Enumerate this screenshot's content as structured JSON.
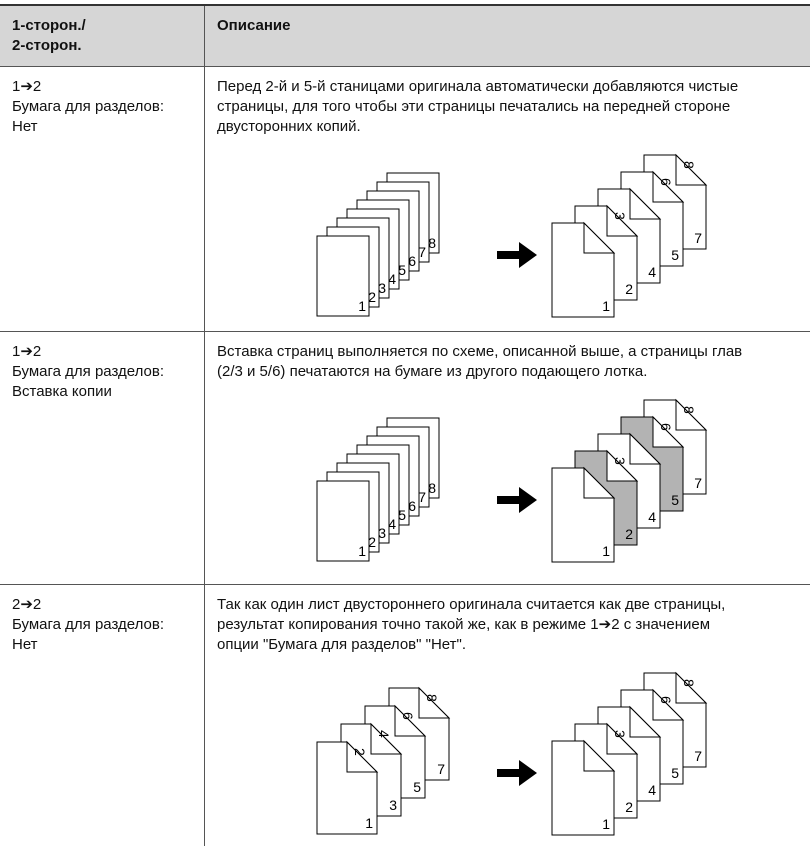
{
  "table": {
    "header": [
      [
        "1-сторон./",
        "2-сторон."
      ],
      "Описание"
    ],
    "rows": [
      {
        "mode": [
          "1➔2",
          "Бумага для разделов: Нет"
        ],
        "description": "Перед 2-й и 5-й станицами оригинала автоматически добавляются чистые страницы, для того чтобы эти страницы печатались на передней стороне двусторонних копий.",
        "diagram": {
          "source": {
            "sides": 1,
            "sheets": [
              [
                "1"
              ],
              [
                "2"
              ],
              [
                "3"
              ],
              [
                "4"
              ],
              [
                "5"
              ],
              [
                "6"
              ],
              [
                "7"
              ],
              [
                "8"
              ]
            ]
          },
          "output": {
            "sides": 2,
            "sheets": [
              [
                "1",
                null
              ],
              [
                "2",
                "3"
              ],
              [
                "4",
                null
              ],
              [
                "5",
                "6"
              ],
              [
                "7",
                "8"
              ]
            ],
            "shaded": [],
            "shade_color": "#b3b3b3"
          }
        }
      },
      {
        "mode": [
          "1➔2",
          "Бумага для разделов: Вставка копии"
        ],
        "description": "Вставка страниц выполняется по схеме, описанной выше, а страницы глав (2/3 и 5/6) печатаются на бумаге из другого подающего лотка.",
        "diagram": {
          "source": {
            "sides": 1,
            "sheets": [
              [
                "1"
              ],
              [
                "2"
              ],
              [
                "3"
              ],
              [
                "4"
              ],
              [
                "5"
              ],
              [
                "6"
              ],
              [
                "7"
              ],
              [
                "8"
              ]
            ]
          },
          "output": {
            "sides": 2,
            "sheets": [
              [
                "1",
                null
              ],
              [
                "2",
                "3"
              ],
              [
                "4",
                null
              ],
              [
                "5",
                "6"
              ],
              [
                "7",
                "8"
              ]
            ],
            "shaded": [
              1,
              3
            ],
            "shade_color": "#b3b3b3"
          }
        }
      },
      {
        "mode": [
          "2➔2",
          "Бумага для разделов: Нет"
        ],
        "description": "Так как один лист двустороннего оригинала считается как две страницы, результат копирования точно такой же, как в режиме 1➔2 с значением опции \"Бумага для разделов\" \"Нет\".",
        "diagram": {
          "source": {
            "sides": 2,
            "sheets": [
              [
                "1",
                "2"
              ],
              [
                "3",
                "4"
              ],
              [
                "5",
                "6"
              ],
              [
                "7",
                "8"
              ]
            ]
          },
          "output": {
            "sides": 2,
            "sheets": [
              [
                "1",
                null
              ],
              [
                "2",
                "3"
              ],
              [
                "4",
                null
              ],
              [
                "5",
                "6"
              ],
              [
                "7",
                "8"
              ]
            ],
            "shaded": [],
            "shade_color": "#b3b3b3"
          }
        }
      }
    ]
  }
}
